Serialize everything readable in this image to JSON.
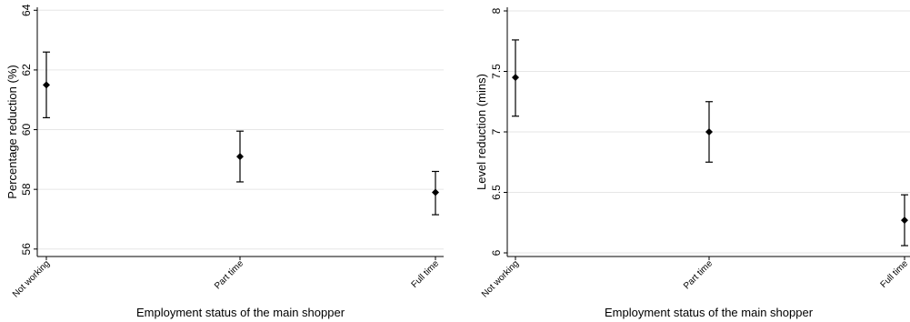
{
  "chart_data": [
    {
      "type": "scatter",
      "style": "point-with-error-bars",
      "title": "",
      "xlabel": "Employment status of the main shopper",
      "ylabel": "Percentage reduction (%)",
      "categories": [
        "Not working",
        "Part time",
        "Full time"
      ],
      "values": [
        61.5,
        59.1,
        57.9
      ],
      "ci_low": [
        60.4,
        58.25,
        57.15
      ],
      "ci_high": [
        62.6,
        59.95,
        58.6
      ],
      "ylim": [
        55.75,
        64.1
      ],
      "yticks": [
        56,
        58,
        60,
        62,
        64
      ],
      "ytick_labels": [
        "56",
        "58",
        "60",
        "62",
        "64"
      ],
      "grid": true
    },
    {
      "type": "scatter",
      "style": "point-with-error-bars",
      "title": "",
      "xlabel": "Employment status of the main shopper",
      "ylabel": "Level reduction (mins)",
      "categories": [
        "Not working",
        "Part time",
        "Full time"
      ],
      "values": [
        7.45,
        7.0,
        6.27
      ],
      "ci_low": [
        7.13,
        6.75,
        6.06
      ],
      "ci_high": [
        7.76,
        7.25,
        6.48
      ],
      "ylim": [
        5.97,
        8.03
      ],
      "yticks": [
        6,
        6.5,
        7,
        7.5,
        8
      ],
      "ytick_labels": [
        "6",
        "6.5",
        "7",
        "7.5",
        "8"
      ],
      "grid": true
    }
  ]
}
